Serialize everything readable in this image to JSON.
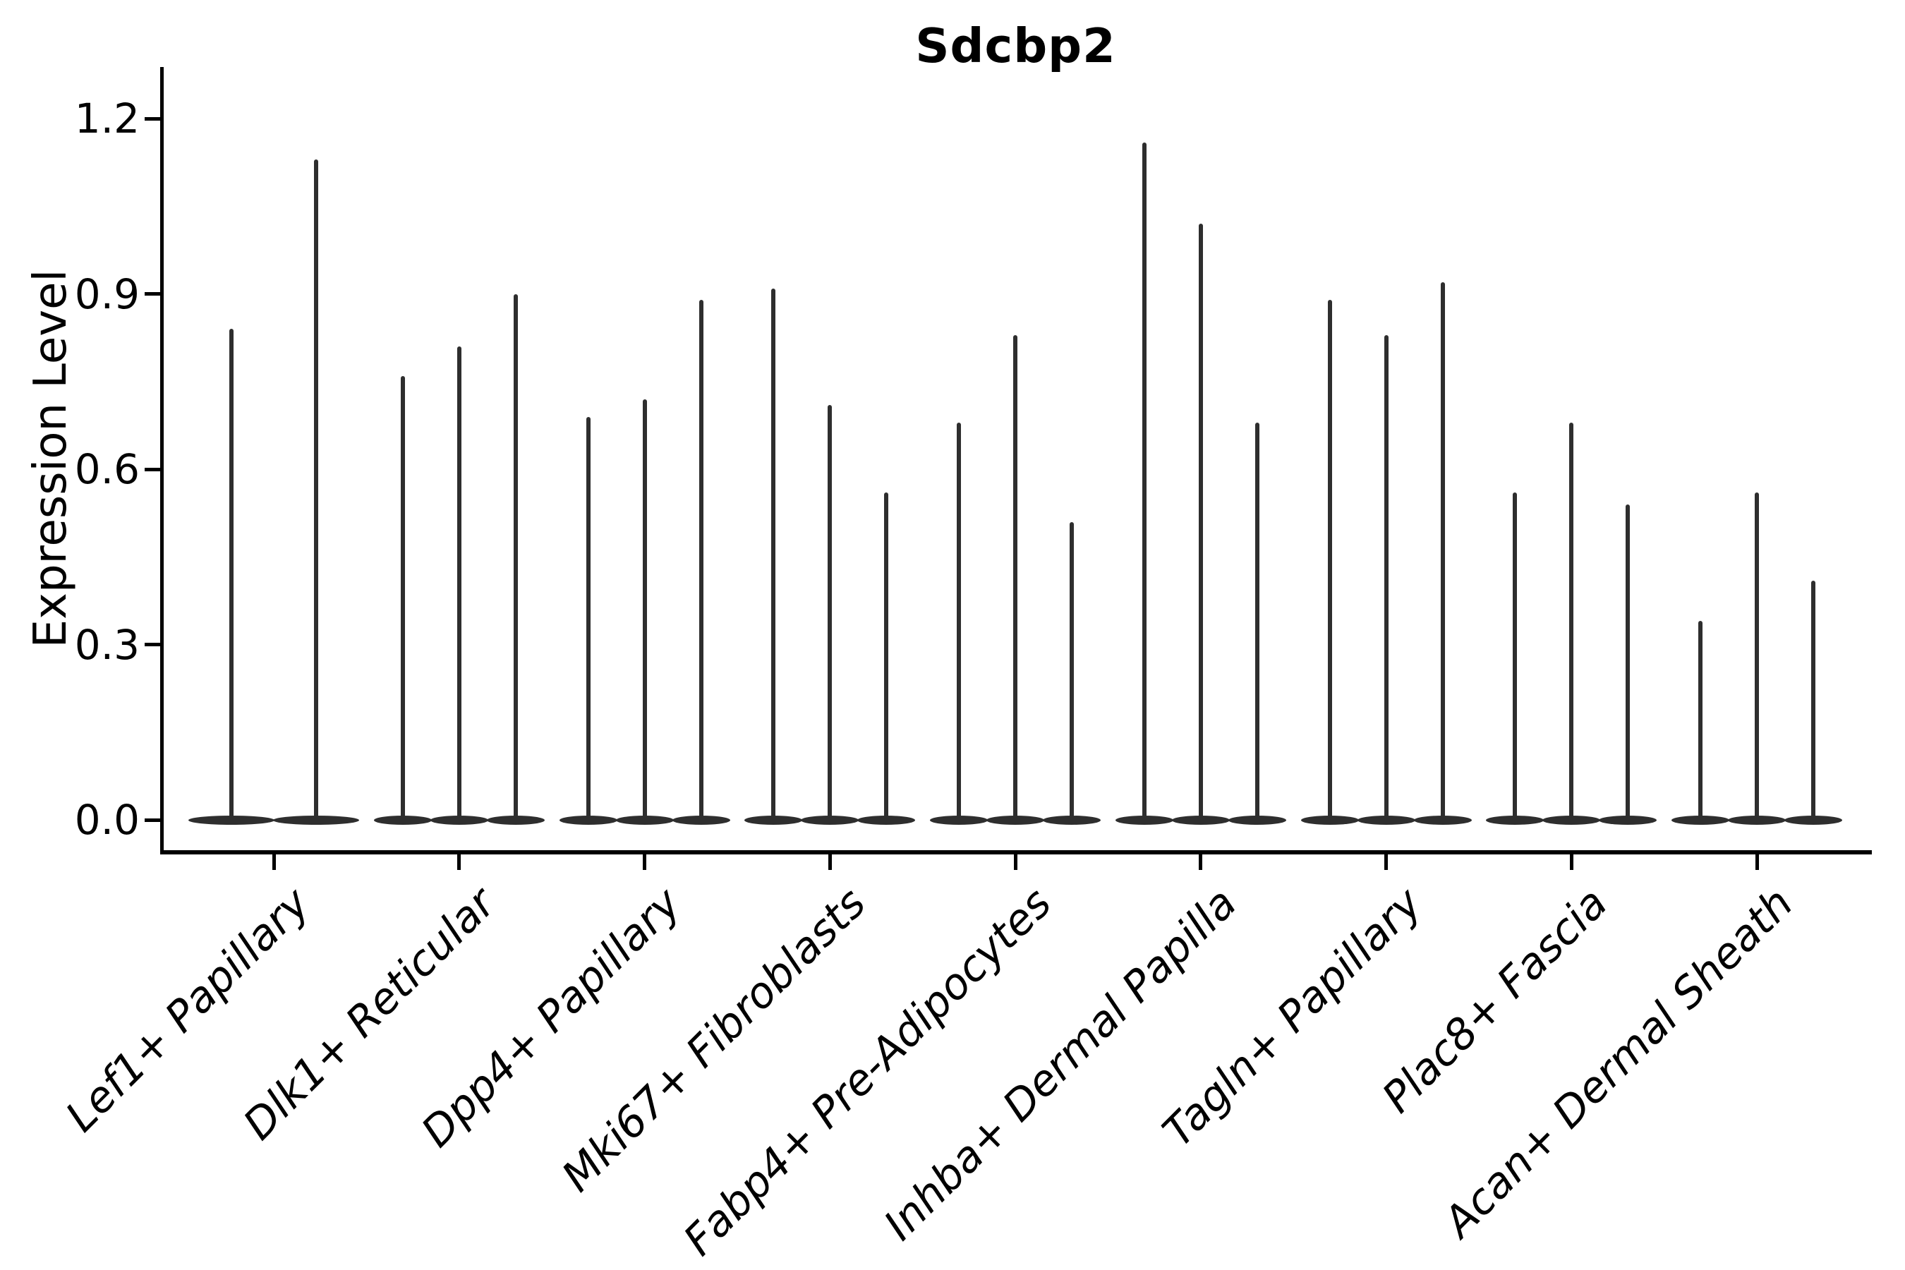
{
  "title": "Sdcbp2",
  "y_axis": {
    "label": "Expression Level",
    "tick_labels": [
      "0.0",
      "0.3",
      "0.6",
      "0.9",
      "1.2"
    ]
  },
  "chart_data": {
    "type": "violin",
    "title": "Sdcbp2",
    "xlabel": "",
    "ylabel": "Expression Level",
    "ylim": [
      -0.06,
      1.29
    ],
    "yticks": [
      0.0,
      0.3,
      0.6,
      0.9,
      1.2
    ],
    "grid": false,
    "legend": "none",
    "background_color": "#ffffff",
    "violin_color": "#2e2e2e",
    "axis_color": "#000000",
    "note": "Thin spike-like violins; bulk of each distribution sits at 0 with a narrow spike reaching the listed maximum expression value. First category has 2 violins, all others have 3.",
    "categories": [
      "Lef1+ Papillary",
      "Dlk1+ Reticular",
      "Dpp4+ Papillary",
      "Mki67+ Fibroblasts",
      "Fabp4+ Pre-Adipocytes",
      "Inhba+ Dermal Papilla",
      "Tagln+ Papillary",
      "Plac8+ Fascia",
      "Acan+ Dermal Sheath"
    ],
    "series": [
      {
        "category": "Lef1+ Papillary",
        "violin_max_values": [
          0.84,
          1.13
        ]
      },
      {
        "category": "Dlk1+ Reticular",
        "violin_max_values": [
          0.76,
          0.81,
          0.9
        ]
      },
      {
        "category": "Dpp4+ Papillary",
        "violin_max_values": [
          0.69,
          0.72,
          0.89
        ]
      },
      {
        "category": "Mki67+ Fibroblasts",
        "violin_max_values": [
          0.91,
          0.71,
          0.56
        ]
      },
      {
        "category": "Fabp4+ Pre-Adipocytes",
        "violin_max_values": [
          0.68,
          0.83,
          0.51
        ]
      },
      {
        "category": "Inhba+ Dermal Papilla",
        "violin_max_values": [
          1.16,
          1.02,
          0.68
        ]
      },
      {
        "category": "Tagln+ Papillary",
        "violin_max_values": [
          0.89,
          0.83,
          0.92
        ]
      },
      {
        "category": "Plac8+ Fascia",
        "violin_max_values": [
          0.56,
          0.68,
          0.54
        ]
      },
      {
        "category": "Acan+ Dermal Sheath",
        "violin_max_values": [
          0.34,
          0.56,
          0.41
        ]
      }
    ]
  }
}
